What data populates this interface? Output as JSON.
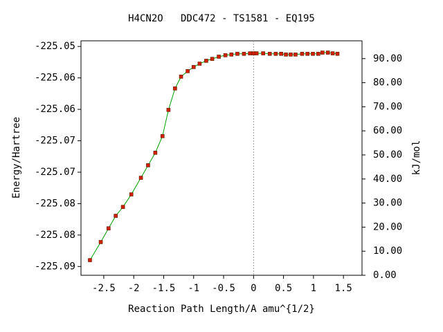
{
  "chart_data": {
    "type": "line",
    "title": "H4CN2O   DDC472 - TS1581 - EQ195",
    "x_label": "Reaction Path Length/A amu^{1/2}",
    "y_label": "Energy/Hartree",
    "y2_label": "kJ/mol",
    "xlim": [
      -2.88,
      1.81
    ],
    "xticks": [
      -2.5,
      -2,
      -1.5,
      -1,
      -0.5,
      0,
      0.5,
      1,
      1.5
    ],
    "ylim": [
      -225.0864,
      -225.0491
    ],
    "yticks": [
      {
        "value": -225.05,
        "label": "-225.05"
      },
      {
        "value": -225.055,
        "label": "-225.06"
      },
      {
        "value": -225.06,
        "label": "-225.06"
      },
      {
        "value": -225.065,
        "label": "-225.07"
      },
      {
        "value": -225.07,
        "label": "-225.07"
      },
      {
        "value": -225.075,
        "label": "-225.08"
      },
      {
        "value": -225.08,
        "label": "-225.08"
      },
      {
        "value": -225.085,
        "label": "-225.09"
      }
    ],
    "y2lim": [
      0,
      97.4
    ],
    "y2ticks": [
      {
        "value": 0,
        "label": "0.00"
      },
      {
        "value": 10,
        "label": "10.00"
      },
      {
        "value": 20,
        "label": "20.00"
      },
      {
        "value": 30,
        "label": "30.00"
      },
      {
        "value": 40,
        "label": "40.00"
      },
      {
        "value": 50,
        "label": "50.00"
      },
      {
        "value": 60,
        "label": "60.00"
      },
      {
        "value": 70,
        "label": "70.00"
      },
      {
        "value": 80,
        "label": "80.00"
      },
      {
        "value": 90,
        "label": "90.00"
      }
    ],
    "reference_line_x": 0,
    "line_color": "#00a000",
    "marker_color": "#d02000",
    "x": [
      -2.73,
      -2.55,
      -2.42,
      -2.3,
      -2.18,
      -2.04,
      -1.88,
      -1.76,
      -1.64,
      -1.52,
      -1.42,
      -1.31,
      -1.21,
      -1.1,
      -1.0,
      -0.9,
      -0.79,
      -0.69,
      -0.58,
      -0.47,
      -0.37,
      -0.27,
      -0.16,
      -0.06,
      0,
      0.05,
      0.16,
      0.27,
      0.37,
      0.46,
      0.54,
      0.62,
      0.7,
      0.81,
      0.9,
      0.99,
      1.08,
      1.15,
      1.24,
      1.32,
      1.4
    ],
    "series": [
      {
        "axis": "y2",
        "values": [
          6.3,
          13.8,
          19.5,
          24.7,
          28.4,
          33.6,
          40.5,
          45.7,
          50.9,
          57.8,
          68.7,
          77.6,
          82.5,
          84.8,
          86.5,
          87.9,
          89.1,
          89.9,
          90.8,
          91.4,
          91.7,
          92.0,
          92.0,
          92.2,
          92.2,
          92.2,
          92.2,
          92.0,
          92.0,
          92.0,
          91.7,
          91.7,
          91.7,
          92.0,
          92.0,
          92.0,
          92.0,
          92.5,
          92.5,
          92.2,
          92.0
        ]
      }
    ]
  }
}
